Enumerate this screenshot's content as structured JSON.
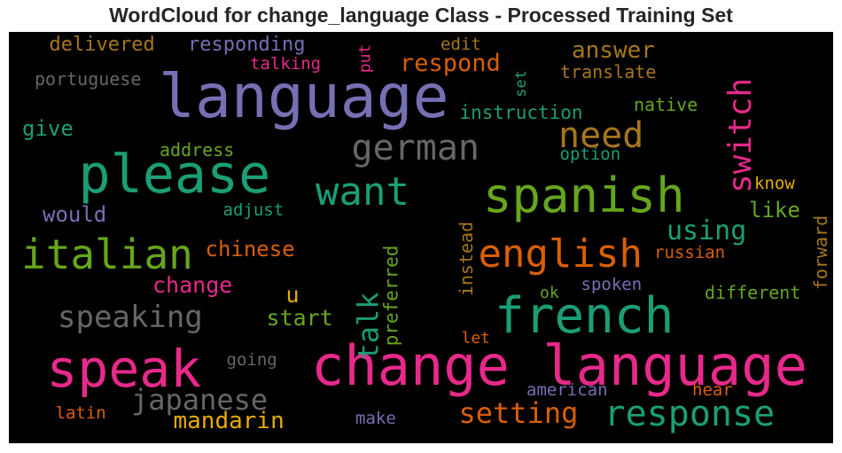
{
  "title": "WordCloud for change_language Class - Processed Training Set",
  "chart_data": {
    "type": "wordcloud",
    "title": "WordCloud for change_language Class - Processed Training Set",
    "words": [
      {
        "text": "language",
        "weight": 68,
        "color": "#7570b3",
        "vertical": false
      },
      {
        "text": "change language",
        "weight": 62,
        "color": "#e7298a",
        "vertical": false
      },
      {
        "text": "please",
        "weight": 60,
        "color": "#1b9e77",
        "vertical": false
      },
      {
        "text": "speak",
        "weight": 58,
        "color": "#e7298a",
        "vertical": false
      },
      {
        "text": "french",
        "weight": 56,
        "color": "#1b9e77",
        "vertical": false
      },
      {
        "text": "spanish",
        "weight": 54,
        "color": "#66a61e",
        "vertical": false
      },
      {
        "text": "italian",
        "weight": 46,
        "color": "#66a61e",
        "vertical": false
      },
      {
        "text": "want",
        "weight": 44,
        "color": "#1b9e77",
        "vertical": false
      },
      {
        "text": "english",
        "weight": 44,
        "color": "#d95f02",
        "vertical": false
      },
      {
        "text": "response",
        "weight": 40,
        "color": "#1b9e77",
        "vertical": false
      },
      {
        "text": "german",
        "weight": 40,
        "color": "#666666",
        "vertical": false
      },
      {
        "text": "need",
        "weight": 40,
        "color": "#a6761d",
        "vertical": false
      },
      {
        "text": "switch",
        "weight": 36,
        "color": "#e7298a",
        "vertical": true
      },
      {
        "text": "speaking",
        "weight": 34,
        "color": "#666666",
        "vertical": false
      },
      {
        "text": "japanese",
        "weight": 32,
        "color": "#666666",
        "vertical": false
      },
      {
        "text": "setting",
        "weight": 32,
        "color": "#d95f02",
        "vertical": false
      },
      {
        "text": "talk",
        "weight": 32,
        "color": "#1b9e77",
        "vertical": true
      },
      {
        "text": "using",
        "weight": 30,
        "color": "#1b9e77",
        "vertical": false
      },
      {
        "text": "respond",
        "weight": 27,
        "color": "#d95f02",
        "vertical": false
      },
      {
        "text": "mandarin",
        "weight": 26,
        "color": "#e6ab02",
        "vertical": false
      },
      {
        "text": "answer",
        "weight": 26,
        "color": "#a6761d",
        "vertical": false
      },
      {
        "text": "start",
        "weight": 25,
        "color": "#66a61e",
        "vertical": false
      },
      {
        "text": "change",
        "weight": 25,
        "color": "#e7298a",
        "vertical": false
      },
      {
        "text": "chinese",
        "weight": 24,
        "color": "#d95f02",
        "vertical": false
      },
      {
        "text": "give",
        "weight": 24,
        "color": "#1b9e77",
        "vertical": false
      },
      {
        "text": "would",
        "weight": 24,
        "color": "#7570b3",
        "vertical": false
      },
      {
        "text": "like",
        "weight": 24,
        "color": "#66a61e",
        "vertical": false
      },
      {
        "text": "delivered",
        "weight": 22,
        "color": "#a6761d",
        "vertical": false
      },
      {
        "text": "responding",
        "weight": 22,
        "color": "#7570b3",
        "vertical": false
      },
      {
        "text": "instruction",
        "weight": 21,
        "color": "#1b9e77",
        "vertical": false
      },
      {
        "text": "preferred",
        "weight": 21,
        "color": "#66a61e",
        "vertical": true
      },
      {
        "text": "instead",
        "weight": 20,
        "color": "#a6761d",
        "vertical": true
      },
      {
        "text": "portuguese",
        "weight": 20,
        "color": "#666666",
        "vertical": false
      },
      {
        "text": "different",
        "weight": 20,
        "color": "#66a61e",
        "vertical": false
      },
      {
        "text": "translate",
        "weight": 20,
        "color": "#a6761d",
        "vertical": false
      },
      {
        "text": "native",
        "weight": 20,
        "color": "#66a61e",
        "vertical": false
      },
      {
        "text": "address",
        "weight": 20,
        "color": "#66a61e",
        "vertical": false
      },
      {
        "text": "u",
        "weight": 25,
        "color": "#e6ab02",
        "vertical": false
      },
      {
        "text": "forward",
        "weight": 20,
        "color": "#a6761d",
        "vertical": true
      },
      {
        "text": "russian",
        "weight": 19,
        "color": "#d95f02",
        "vertical": false
      },
      {
        "text": "talking",
        "weight": 19,
        "color": "#e7298a",
        "vertical": false
      },
      {
        "text": "going",
        "weight": 19,
        "color": "#666666",
        "vertical": false
      },
      {
        "text": "adjust",
        "weight": 19,
        "color": "#1b9e77",
        "vertical": false
      },
      {
        "text": "spoken",
        "weight": 19,
        "color": "#7570b3",
        "vertical": false
      },
      {
        "text": "option",
        "weight": 19,
        "color": "#1b9e77",
        "vertical": false
      },
      {
        "text": "edit",
        "weight": 19,
        "color": "#a6761d",
        "vertical": false
      },
      {
        "text": "american",
        "weight": 19,
        "color": "#7570b3",
        "vertical": false
      },
      {
        "text": "latin",
        "weight": 19,
        "color": "#d95f02",
        "vertical": false
      },
      {
        "text": "make",
        "weight": 19,
        "color": "#7570b3",
        "vertical": false
      },
      {
        "text": "hear",
        "weight": 19,
        "color": "#d95f02",
        "vertical": false
      },
      {
        "text": "know",
        "weight": 19,
        "color": "#e6ab02",
        "vertical": false
      },
      {
        "text": "let",
        "weight": 18,
        "color": "#d95f02",
        "vertical": false
      },
      {
        "text": "ok",
        "weight": 18,
        "color": "#66a61e",
        "vertical": false
      },
      {
        "text": "put",
        "weight": 18,
        "color": "#e7298a",
        "vertical": true
      },
      {
        "text": "set",
        "weight": 17,
        "color": "#1b9e77",
        "vertical": true
      }
    ]
  }
}
